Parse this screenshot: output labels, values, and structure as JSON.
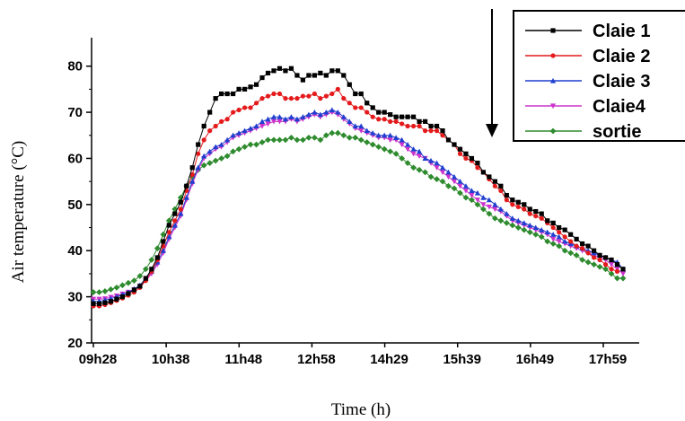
{
  "chart_data": {
    "type": "line",
    "title": "",
    "xlabel": "Time (h)",
    "ylabel": "Air temperature (°C)",
    "ylim": [
      20,
      85
    ],
    "y_ticks": [
      20,
      30,
      40,
      50,
      60,
      70,
      80
    ],
    "x_tick_labels": [
      "09h28",
      "10h38",
      "11h48",
      "12h58",
      "14h29",
      "15h39",
      "16h49",
      "17h59"
    ],
    "legend_position": "top-right",
    "series": [
      {
        "name": "Claie 1",
        "color": "#000000",
        "marker": "square",
        "values": [
          28.5,
          28.5,
          28.7,
          29,
          29.5,
          30,
          30.7,
          31.5,
          32.3,
          34,
          36,
          38.5,
          42,
          45.5,
          48,
          50.5,
          54,
          58,
          63,
          67,
          70,
          73,
          74,
          74,
          74,
          75,
          75,
          75.5,
          76,
          77.5,
          78.5,
          79,
          79.5,
          79,
          79.5,
          78,
          77,
          78,
          78,
          78.5,
          78,
          79,
          79,
          78,
          76,
          74,
          74,
          72,
          71,
          70,
          70,
          69.5,
          69,
          69,
          69,
          69,
          68,
          68,
          67,
          67,
          66,
          64,
          63,
          62,
          61,
          60,
          59,
          57,
          56,
          55,
          54,
          52,
          51,
          50.5,
          50,
          49,
          48.5,
          48,
          46.5,
          46,
          45,
          44.5,
          43.5,
          42.5,
          41.5,
          41,
          40,
          39,
          38.5,
          38,
          37,
          36
        ]
      },
      {
        "name": "Claie 2",
        "color": "#e41a1c",
        "marker": "circle",
        "values": [
          28,
          28,
          28.3,
          28.7,
          29.2,
          29.7,
          30.3,
          31,
          32,
          33.5,
          35.5,
          38,
          41,
          44,
          46.5,
          49,
          53,
          56.5,
          61,
          64,
          66,
          67,
          68,
          68.5,
          70,
          70.5,
          71,
          71,
          72,
          73,
          73.5,
          74,
          74,
          73,
          73,
          73,
          73.5,
          73.5,
          74,
          73,
          73.5,
          74,
          75,
          73,
          72,
          71,
          71,
          70,
          69,
          68.5,
          68.5,
          68,
          68,
          67.5,
          67,
          67,
          67,
          66,
          66,
          66,
          65,
          64,
          63,
          61,
          60,
          59.5,
          58,
          57,
          55.5,
          54,
          53,
          51,
          50,
          49.5,
          49,
          48,
          47.5,
          47,
          46,
          45,
          44,
          43,
          42,
          41,
          40.5,
          39.5,
          38.5,
          38,
          37,
          36,
          35.5
        ]
      },
      {
        "name": "Claie 3",
        "color": "#1f3fcf",
        "marker": "triangle-up",
        "values": [
          29,
          29,
          29.3,
          29.6,
          30,
          30.5,
          31,
          31.7,
          32.5,
          34,
          35.5,
          37.5,
          40,
          43,
          45.5,
          48,
          51.5,
          55,
          58,
          60.5,
          61.5,
          62.5,
          63,
          64,
          65,
          65.5,
          66,
          66.5,
          67,
          68,
          68.5,
          69,
          69,
          68.5,
          69,
          68.5,
          69,
          69.5,
          70,
          69.5,
          70,
          70.5,
          70,
          69,
          68,
          67,
          67,
          66,
          65.5,
          65,
          65,
          65,
          64.5,
          64,
          63,
          62,
          61.5,
          60,
          59.5,
          59,
          58,
          57,
          56,
          55,
          54,
          53,
          52.5,
          51.5,
          51,
          50,
          49,
          48,
          47,
          46.5,
          46,
          45.5,
          45,
          44.5,
          44,
          43.5,
          43,
          42,
          41.5,
          41,
          40.5,
          40,
          39.5,
          39,
          38.5,
          38,
          37.5,
          36
        ]
      },
      {
        "name": "Claie4",
        "color": "#cc33cc",
        "marker": "triangle-down",
        "values": [
          29.5,
          29.5,
          29.6,
          29.9,
          30.2,
          30.6,
          31,
          31.5,
          32.3,
          33.5,
          35,
          37,
          39.5,
          42.5,
          45,
          47.5,
          51,
          54.5,
          57.5,
          60,
          61,
          62,
          62.5,
          63.5,
          64.5,
          65,
          65.5,
          66,
          66.5,
          67,
          67.5,
          68,
          68,
          68,
          68.5,
          68,
          68.5,
          69,
          69.5,
          69,
          69.5,
          70,
          69.5,
          68.5,
          67.5,
          66.5,
          66,
          65.5,
          65,
          64.5,
          64.5,
          64,
          64,
          63,
          62,
          61,
          60.5,
          60,
          59,
          58,
          57,
          56,
          55,
          54,
          53,
          52,
          51,
          50,
          49.5,
          49,
          48.5,
          47.5,
          46.5,
          46,
          45.5,
          45,
          44.5,
          44,
          43.5,
          42.5,
          42,
          41.5,
          41,
          40.5,
          40,
          39.5,
          39,
          38.5,
          38,
          37,
          36,
          35
        ]
      },
      {
        "name": "sortie",
        "color": "#2e8b2e",
        "marker": "diamond",
        "values": [
          31,
          31,
          31.2,
          31.6,
          32,
          32.5,
          33,
          33.5,
          34.5,
          36,
          38,
          40.5,
          43.5,
          46.5,
          49,
          51.5,
          54,
          56,
          57.5,
          58.5,
          59,
          59.5,
          60,
          60.5,
          61.5,
          62,
          62.5,
          63,
          63,
          63.5,
          64,
          64,
          64,
          64,
          64.5,
          64,
          64,
          64.5,
          64.5,
          64,
          65,
          65.5,
          65.5,
          65,
          64.5,
          64.5,
          64,
          63.5,
          63,
          62.5,
          62,
          61.5,
          61,
          60,
          59,
          58,
          57.5,
          57,
          56,
          55.5,
          55,
          54,
          53.5,
          52.5,
          51.5,
          51,
          50,
          49,
          48,
          47,
          46.5,
          46,
          45.5,
          45,
          44.5,
          44,
          43.5,
          43,
          42,
          41.5,
          41,
          40,
          39.5,
          39,
          38,
          37.5,
          37,
          36.5,
          36,
          35,
          34,
          34
        ]
      }
    ],
    "annotations": [
      {
        "type": "arrow",
        "direction": "down",
        "text": ""
      }
    ]
  }
}
